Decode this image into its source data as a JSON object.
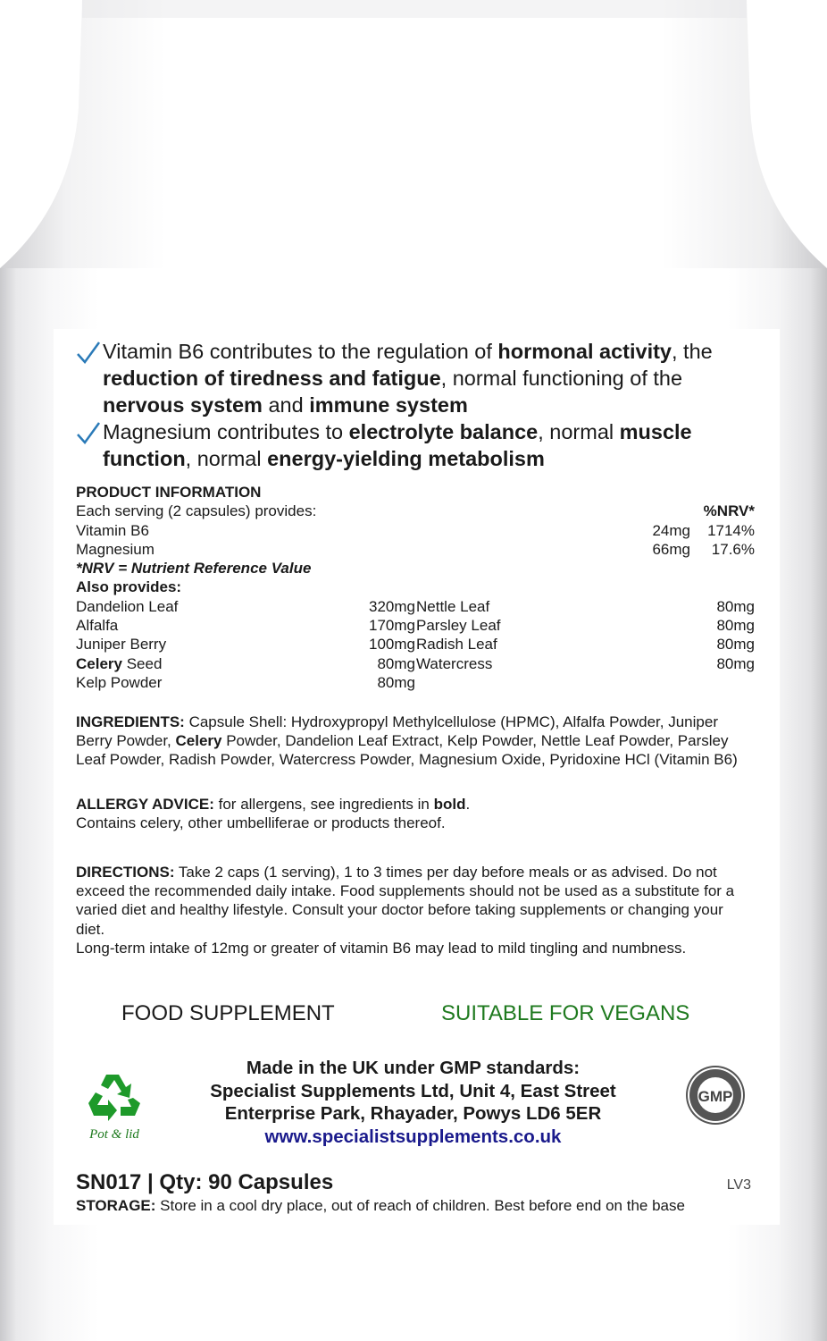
{
  "colors": {
    "check": "#2a7ab8",
    "vegan": "#1f7a1f",
    "url": "#1a1a8c",
    "recycle": "#1e9a2a"
  },
  "benefits": [
    [
      {
        "t": "Vitamin B6 contributes to the regulation of "
      },
      {
        "t": "hormonal activity",
        "b": true
      },
      {
        "t": ", the "
      },
      {
        "t": "reduction of tiredness and fatigue",
        "b": true
      },
      {
        "t": ", normal functioning of the "
      },
      {
        "t": "nervous system",
        "b": true
      },
      {
        "t": " and "
      },
      {
        "t": "immune system",
        "b": true
      }
    ],
    [
      {
        "t": "Magnesium contributes to "
      },
      {
        "t": "electrolyte balance",
        "b": true
      },
      {
        "t": ", normal "
      },
      {
        "t": "muscle function",
        "b": true
      },
      {
        "t": ", normal "
      },
      {
        "t": "energy-yielding metabolism",
        "b": true
      }
    ]
  ],
  "product_info": {
    "heading": "PRODUCT INFORMATION",
    "serving": "Each serving (2 capsules) provides:",
    "nrv_header": "%NRV*",
    "nutrients": [
      {
        "name": "Vitamin B6",
        "amount": "24mg",
        "nrv": "1714%"
      },
      {
        "name": "Magnesium",
        "amount": "66mg",
        "nrv": "17.6%"
      }
    ],
    "nrv_note": "*NRV = Nutrient Reference Value",
    "also_heading": "Also provides:",
    "also_left": [
      {
        "name": "Dandelion Leaf",
        "amount": "320mg"
      },
      {
        "name": "Alfalfa",
        "amount": "170mg"
      },
      {
        "name": "Juniper Berry",
        "amount": "100mg"
      },
      {
        "name": "Celery",
        "name_rest": " Seed",
        "amount": "80mg"
      },
      {
        "name": "Kelp Powder",
        "amount": "80mg"
      }
    ],
    "also_right": [
      {
        "name": "Nettle Leaf",
        "amount": "80mg"
      },
      {
        "name": "Parsley Leaf",
        "amount": "80mg"
      },
      {
        "name": "Radish Leaf",
        "amount": "80mg"
      },
      {
        "name": "Watercress",
        "amount": "80mg"
      }
    ]
  },
  "ingredients": [
    {
      "t": "INGREDIENTS:",
      "b": true
    },
    {
      "t": " Capsule Shell: Hydroxypropyl Methylcellulose (HPMC), Alfalfa Powder, Juniper Berry Powder, "
    },
    {
      "t": "Celery",
      "b": true
    },
    {
      "t": " Powder, Dandelion Leaf Extract, Kelp Powder, Nettle Leaf Powder, Parsley Leaf Powder, Radish Powder, Watercress Powder, Magnesium Oxide, Pyridoxine HCl (Vitamin B6)"
    }
  ],
  "allergy": [
    {
      "t": "ALLERGY ADVICE:",
      "b": true
    },
    {
      "t": " for allergens, see ingredients in "
    },
    {
      "t": "bold",
      "b": true
    },
    {
      "t": ".\nContains celery, other umbelliferae or products thereof."
    }
  ],
  "directions": [
    {
      "t": "DIRECTIONS:",
      "b": true
    },
    {
      "t": " Take 2 caps (1 serving), 1 to 3 times per day before meals or as advised. Do not exceed the recommended daily intake. Food supplements should not be used as a substitute for a varied diet and healthy lifestyle. Consult your doctor before taking supplements or changing your diet.\nLong-term intake of 12mg or greater of vitamin B6 may lead to mild tingling and numbness."
    }
  ],
  "food_supplement": "FOOD SUPPLEMENT",
  "vegan": "SUITABLE FOR VEGANS",
  "recycle_label": "Pot & lid",
  "manufacturer": {
    "line1": "Made in the UK under GMP standards:",
    "line2": "Specialist Supplements Ltd, Unit 4, East Street",
    "line3": "Enterprise Park, Rhayader, Powys LD6 5ER",
    "url": "www.specialistsupplements.co.uk"
  },
  "gmp_badge": "GMP",
  "sku": "SN017 | Qty: 90 Capsules",
  "version": "LV3",
  "storage": [
    {
      "t": "STORAGE:",
      "b": true
    },
    {
      "t": " Store in a cool dry place, out of reach of children. Best before end on the base"
    }
  ]
}
